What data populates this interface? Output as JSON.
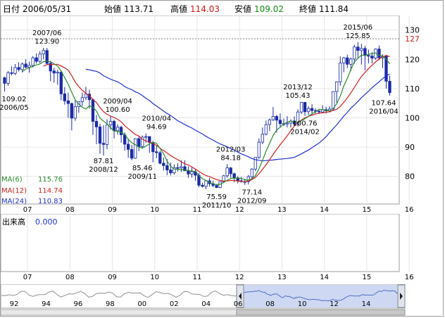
{
  "header": {
    "date_label": "日付",
    "date": "2006/05/31",
    "open_label": "始値",
    "open": "113.71",
    "high_label": "高値",
    "high": "114.03",
    "low_label": "安値",
    "low": "109.02",
    "close_label": "終値",
    "close": "111.84"
  },
  "volume_panel": {
    "label": "出来高",
    "value": "0.000"
  },
  "ma_legend": [
    {
      "label": "MA(6)",
      "value": "115.76",
      "color": "#2a8a2a"
    },
    {
      "label": "MA(12)",
      "value": "114.74",
      "color": "#d02020"
    },
    {
      "label": "MA(24)",
      "value": "110.83",
      "color": "#2030d0"
    }
  ],
  "navigator": {
    "year_labels": [
      "92",
      "94",
      "96",
      "98",
      "00",
      "02",
      "04",
      "06",
      "08",
      "10",
      "12",
      "14"
    ]
  },
  "colors": {
    "up": "#ffffff",
    "down": "#1a2aa8",
    "outline": "#1a2aa8",
    "ma6": "#2a8a2a",
    "ma12": "#d02020",
    "ma24": "#2030d0",
    "marker": "#d02020",
    "nav_fill": "#b9c8ee"
  },
  "chart_data": {
    "type": "candlestick",
    "series_name": "",
    "x_labels": [
      "07",
      "08",
      "09",
      "10",
      "11",
      "12",
      "13",
      "14",
      "15",
      "16"
    ],
    "y_ticks": [
      80,
      90,
      100,
      110,
      120,
      130
    ],
    "ylim": [
      72,
      134
    ],
    "reference_line": {
      "value": 127,
      "label": "127"
    },
    "annotations": [
      {
        "date": "2006/05",
        "value": "109.02",
        "label": "2006/05",
        "kind": "low"
      },
      {
        "date": "2007/06",
        "value": "123.90",
        "label": "2007/06",
        "kind": "high"
      },
      {
        "date": "2008/12",
        "value": "87.81",
        "label": "2008/12",
        "kind": "low"
      },
      {
        "date": "2009/04",
        "value": "100.60",
        "label": "2009/04",
        "kind": "high"
      },
      {
        "date": "2009/11",
        "value": "85.46",
        "label": "2009/11",
        "kind": "low"
      },
      {
        "date": "2010/04",
        "value": "94.69",
        "label": "2010/04",
        "kind": "high"
      },
      {
        "date": "2011/10",
        "value": "75.59",
        "label": "2011/10",
        "kind": "low"
      },
      {
        "date": "2012/03",
        "value": "84.18",
        "label": "2012/03",
        "kind": "high"
      },
      {
        "date": "2012/09",
        "value": "77.14",
        "label": "2012/09",
        "kind": "low"
      },
      {
        "date": "2013/12",
        "value": "105.43",
        "label": "2013/12",
        "kind": "high"
      },
      {
        "date": "2014/02",
        "value": "100.76",
        "label": "2014/02",
        "kind": "low"
      },
      {
        "date": "2015/06",
        "value": "125.85",
        "label": "2015/06",
        "kind": "high"
      },
      {
        "date": "2016/04",
        "value": "107.64",
        "label": "2016/04",
        "kind": "low"
      }
    ],
    "candles": [
      [
        113.7,
        114.0,
        109.0,
        111.8
      ],
      [
        111.8,
        116.0,
        111.0,
        115.4
      ],
      [
        115.4,
        117.6,
        114.5,
        115.2
      ],
      [
        115.2,
        118.4,
        114.6,
        117.2
      ],
      [
        117.2,
        119.0,
        115.8,
        116.5
      ],
      [
        116.5,
        118.9,
        115.5,
        118.4
      ],
      [
        118.4,
        120.0,
        117.0,
        117.3
      ],
      [
        117.3,
        119.2,
        115.4,
        117.9
      ],
      [
        117.9,
        121.1,
        117.2,
        120.5
      ],
      [
        120.5,
        122.0,
        118.5,
        119.3
      ],
      [
        119.3,
        122.8,
        118.7,
        121.8
      ],
      [
        121.8,
        123.9,
        120.0,
        123.0
      ],
      [
        123.0,
        123.9,
        118.0,
        118.6
      ],
      [
        118.6,
        119.5,
        112.5,
        116.0
      ],
      [
        116.0,
        117.0,
        112.0,
        115.3
      ],
      [
        115.3,
        116.4,
        111.3,
        115.6
      ],
      [
        115.6,
        116.2,
        106.0,
        108.2
      ],
      [
        108.2,
        110.5,
        104.5,
        105.8
      ],
      [
        105.8,
        108.6,
        100.0,
        104.9
      ],
      [
        104.9,
        105.2,
        95.7,
        99.9
      ],
      [
        99.9,
        106.0,
        99.0,
        103.8
      ],
      [
        103.8,
        105.5,
        101.7,
        105.5
      ],
      [
        105.5,
        108.6,
        104.0,
        106.9
      ],
      [
        106.9,
        110.6,
        106.0,
        108.1
      ],
      [
        108.1,
        109.6,
        103.2,
        106.2
      ],
      [
        106.2,
        106.6,
        94.2,
        98.8
      ],
      [
        98.8,
        101.0,
        91.0,
        96.9
      ],
      [
        96.9,
        98.0,
        87.8,
        91.3
      ],
      [
        91.3,
        97.5,
        87.1,
        90.9
      ],
      [
        90.9,
        99.5,
        89.3,
        97.6
      ],
      [
        97.6,
        100.6,
        96.0,
        98.8
      ],
      [
        98.8,
        99.4,
        93.0,
        95.6
      ],
      [
        95.6,
        97.8,
        94.3,
        96.8
      ],
      [
        96.8,
        97.3,
        91.5,
        94.2
      ],
      [
        94.2,
        95.0,
        88.8,
        91.0
      ],
      [
        91.0,
        92.7,
        86.3,
        89.2
      ],
      [
        89.2,
        90.8,
        85.5,
        86.2
      ],
      [
        86.2,
        93.0,
        86.0,
        92.9
      ],
      [
        92.9,
        93.6,
        88.6,
        90.2
      ],
      [
        90.2,
        94.0,
        89.4,
        93.4
      ],
      [
        93.4,
        94.7,
        91.5,
        93.6
      ],
      [
        93.6,
        93.8,
        88.0,
        91.6
      ],
      [
        91.6,
        92.2,
        84.8,
        88.4
      ],
      [
        88.4,
        90.5,
        86.2,
        88.1
      ],
      [
        88.1,
        88.8,
        84.1,
        84.5
      ],
      [
        84.5,
        86.5,
        82.0,
        83.7
      ],
      [
        83.7,
        85.9,
        80.4,
        82.2
      ],
      [
        82.2,
        84.7,
        80.3,
        81.2
      ],
      [
        81.2,
        84.1,
        80.6,
        83.0
      ],
      [
        83.0,
        84.5,
        81.7,
        82.9
      ],
      [
        82.9,
        85.5,
        81.5,
        83.3
      ],
      [
        83.3,
        85.5,
        82.5,
        81.9
      ],
      [
        81.9,
        83.4,
        79.5,
        80.8
      ],
      [
        80.8,
        83.1,
        79.6,
        81.6
      ],
      [
        81.6,
        82.6,
        78.5,
        80.4
      ],
      [
        80.4,
        81.2,
        76.3,
        77.0
      ],
      [
        77.0,
        77.8,
        76.2,
        76.6
      ],
      [
        76.6,
        78.2,
        75.6,
        78.5
      ],
      [
        78.5,
        79.5,
        76.5,
        77.5
      ],
      [
        77.5,
        78.5,
        76.3,
        76.9
      ],
      [
        76.9,
        77.3,
        76.0,
        76.2
      ],
      [
        76.2,
        78.3,
        76.0,
        78.2
      ],
      [
        78.2,
        80.5,
        78.0,
        80.2
      ],
      [
        80.2,
        84.2,
        79.5,
        82.9
      ],
      [
        82.9,
        83.2,
        79.5,
        80.9
      ],
      [
        80.9,
        81.3,
        78.0,
        79.5
      ],
      [
        79.5,
        80.1,
        77.6,
        78.5
      ],
      [
        78.5,
        79.9,
        77.9,
        78.2
      ],
      [
        78.2,
        79.2,
        77.1,
        78.2
      ],
      [
        78.2,
        80.5,
        77.2,
        79.9
      ],
      [
        79.9,
        82.8,
        79.3,
        82.5
      ],
      [
        82.5,
        86.6,
        81.8,
        86.5
      ],
      [
        86.5,
        93.0,
        86.0,
        91.7
      ],
      [
        91.7,
        96.7,
        91.0,
        94.4
      ],
      [
        94.4,
        99.1,
        94.0,
        97.7
      ],
      [
        97.7,
        99.8,
        95.5,
        99.3
      ],
      [
        99.3,
        103.7,
        99.0,
        100.5
      ],
      [
        100.5,
        101.0,
        95.0,
        99.2
      ],
      [
        99.2,
        101.5,
        96.6,
        98.0
      ],
      [
        98.0,
        99.7,
        97.2,
        97.9
      ],
      [
        97.9,
        100.6,
        96.7,
        98.2
      ],
      [
        98.2,
        99.5,
        96.7,
        98.9
      ],
      [
        98.9,
        100.5,
        97.5,
        97.9
      ],
      [
        97.9,
        102.9,
        97.0,
        102.0
      ],
      [
        102.0,
        105.4,
        101.3,
        105.3
      ],
      [
        105.3,
        105.0,
        100.7,
        102.1
      ],
      [
        102.1,
        104.0,
        101.0,
        103.2
      ],
      [
        103.2,
        104.7,
        101.1,
        102.5
      ],
      [
        102.5,
        103.2,
        101.5,
        102.3
      ],
      [
        102.3,
        102.6,
        101.3,
        102.0
      ],
      [
        102.0,
        104.3,
        101.6,
        102.8
      ],
      [
        102.8,
        103.8,
        101.5,
        102.4
      ],
      [
        102.4,
        104.0,
        101.8,
        103.0
      ],
      [
        103.0,
        109.0,
        102.3,
        109.0
      ],
      [
        109.0,
        112.5,
        105.2,
        112.3
      ],
      [
        112.3,
        121.0,
        111.0,
        118.7
      ],
      [
        118.7,
        120.8,
        115.6,
        120.5
      ],
      [
        120.5,
        121.6,
        117.0,
        118.3
      ],
      [
        118.3,
        120.6,
        116.0,
        120.1
      ],
      [
        120.1,
        125.0,
        118.5,
        124.2
      ],
      [
        124.2,
        125.9,
        120.5,
        123.0
      ],
      [
        123.0,
        125.3,
        118.2,
        123.7
      ],
      [
        123.7,
        124.6,
        116.2,
        121.3
      ],
      [
        121.3,
        123.3,
        118.6,
        121.1
      ],
      [
        121.1,
        122.5,
        118.6,
        120.4
      ],
      [
        120.4,
        123.7,
        119.8,
        123.5
      ],
      [
        123.5,
        124.7,
        119.7,
        120.5
      ],
      [
        120.5,
        121.7,
        117.0,
        121.0
      ],
      [
        121.0,
        121.5,
        110.0,
        112.5
      ],
      [
        112.5,
        114.4,
        107.6,
        108.6
      ]
    ],
    "ma6": [
      null,
      null,
      null,
      null,
      null,
      115.7,
      116.7,
      117.1,
      117.6,
      118.1,
      118.4,
      119.2,
      119.4,
      119.1,
      118.5,
      117.7,
      116.0,
      113.8,
      111.5,
      108.7,
      106.1,
      104.7,
      103.6,
      103.0,
      104.1,
      103.6,
      102.3,
      99.9,
      98.9,
      97.9,
      96.6,
      95.5,
      95.4,
      95.0,
      94.4,
      92.7,
      91.5,
      90.8,
      90.0,
      89.7,
      90.3,
      91.1,
      91.6,
      91.3,
      89.5,
      87.8,
      85.2,
      83.5,
      82.5,
      82.4,
      82.3,
      82.2,
      82.0,
      81.8,
      81.7,
      80.2,
      79.2,
      78.6,
      78.0,
      77.4,
      77.2,
      77.3,
      77.9,
      78.7,
      79.3,
      79.4,
      79.4,
      79.3,
      78.8,
      78.7,
      79.2,
      80.3,
      82.6,
      85.5,
      88.6,
      91.3,
      94.0,
      95.8,
      96.8,
      97.9,
      98.5,
      98.9,
      98.6,
      98.4,
      99.0,
      99.7,
      100.5,
      101.4,
      102.0,
      102.9,
      102.8,
      102.5,
      102.4,
      103.2,
      104.8,
      107.4,
      110.9,
      113.5,
      116.5,
      119.1,
      120.3,
      121.4,
      121.3,
      121.7,
      121.9,
      122.2,
      121.3,
      121.1,
      120.1,
      118.4
    ],
    "ma12": [
      null,
      null,
      null,
      null,
      null,
      null,
      null,
      null,
      null,
      null,
      null,
      117.6,
      118.2,
      118.2,
      118.2,
      118.3,
      117.7,
      117.1,
      116.3,
      114.4,
      112.2,
      110.7,
      109.4,
      108.4,
      107.6,
      106.3,
      105.2,
      103.5,
      102.1,
      101.2,
      100.6,
      100.1,
      99.5,
      98.7,
      97.3,
      96.3,
      95.3,
      94.3,
      93.8,
      92.7,
      92.1,
      91.8,
      91.2,
      90.6,
      89.6,
      88.8,
      88.0,
      87.1,
      86.4,
      85.7,
      85.0,
      84.3,
      83.9,
      83.2,
      82.5,
      81.7,
      80.9,
      80.3,
      79.9,
      79.4,
      78.9,
      78.6,
      78.4,
      78.5,
      78.6,
      78.6,
      78.4,
      78.3,
      78.2,
      78.4,
      78.9,
      79.7,
      80.9,
      82.4,
      84.0,
      85.7,
      87.5,
      89.2,
      90.8,
      92.3,
      93.9,
      95.6,
      97.2,
      98.3,
      99.2,
      100.0,
      100.5,
      100.9,
      101.3,
      101.6,
      101.7,
      101.9,
      102.1,
      102.5,
      102.9,
      103.9,
      105.3,
      106.8,
      108.5,
      110.4,
      112.3,
      114.1,
      115.5,
      116.8,
      118.0,
      119.1,
      120.1,
      120.8,
      121.3,
      120.9
    ],
    "ma24": [
      null,
      null,
      null,
      null,
      null,
      null,
      null,
      null,
      null,
      null,
      null,
      null,
      null,
      null,
      null,
      null,
      null,
      null,
      null,
      null,
      null,
      null,
      null,
      116.6,
      116.4,
      116.1,
      115.9,
      115.3,
      114.4,
      113.8,
      113.2,
      112.7,
      112.3,
      111.6,
      110.7,
      110.1,
      109.6,
      108.9,
      108.4,
      107.6,
      106.7,
      105.9,
      104.9,
      104.0,
      103.2,
      102.3,
      101.5,
      100.8,
      99.9,
      99.0,
      98.4,
      97.7,
      97.1,
      96.5,
      95.8,
      95.1,
      94.5,
      93.7,
      93.0,
      92.4,
      91.7,
      91.1,
      90.6,
      90.1,
      89.5,
      89.0,
      88.3,
      87.7,
      87.2,
      86.7,
      86.1,
      85.7,
      85.5,
      85.3,
      85.4,
      85.5,
      85.6,
      85.8,
      85.9,
      86.0,
      86.1,
      86.3,
      86.5,
      87.1,
      87.7,
      88.4,
      89.0,
      89.8,
      90.6,
      91.4,
      92.4,
      93.6,
      95.0,
      96.3,
      97.6,
      99.1,
      100.6,
      101.9,
      103.3,
      104.4,
      105.6,
      106.9,
      108.0,
      109.1,
      110.3,
      111.3,
      112.3,
      113.4,
      114.3,
      115.0
    ]
  }
}
